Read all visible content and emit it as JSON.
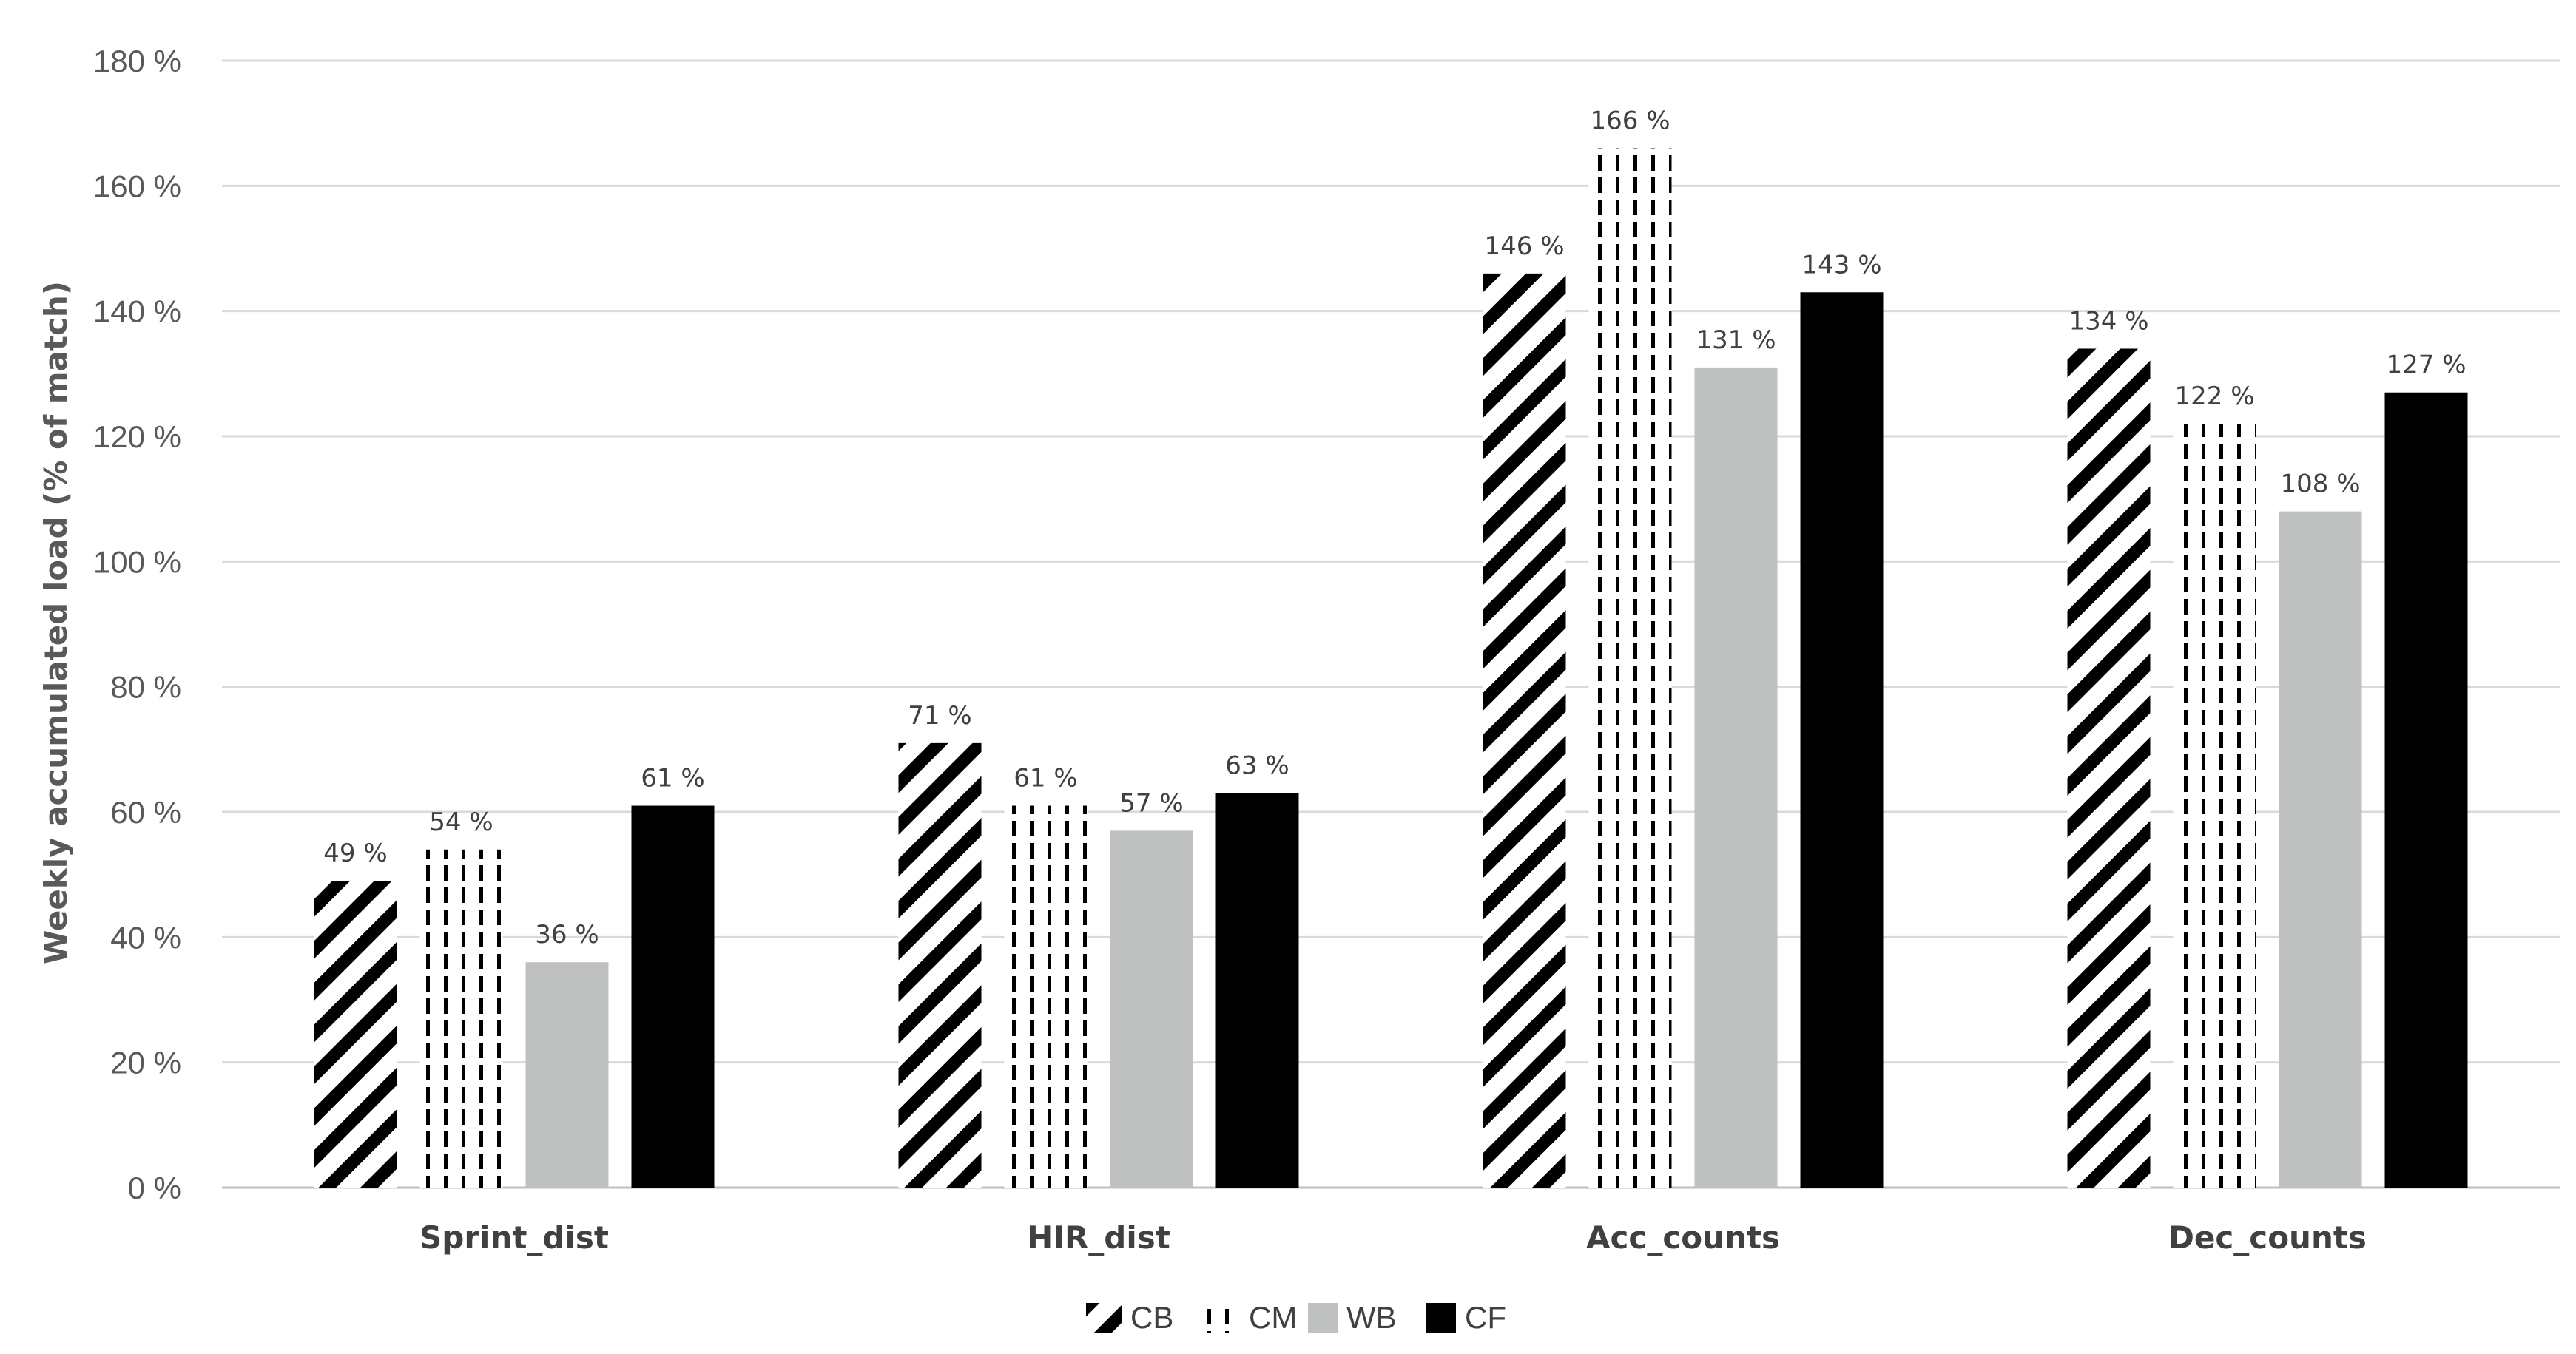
{
  "chart_data": {
    "type": "bar",
    "title": "",
    "xlabel": "",
    "ylabel": "Weekly accumulated load (% of match)",
    "ylim": [
      0,
      180
    ],
    "yticks": [
      0,
      20,
      40,
      60,
      80,
      100,
      120,
      140,
      160,
      180
    ],
    "ytick_labels": [
      "0 %",
      "20 %",
      "40 %",
      "60 %",
      "80 %",
      "100 %",
      "120 %",
      "140 %",
      "160 %",
      "180 %"
    ],
    "grid": true,
    "legend_position": "bottom",
    "categories": [
      "Sprint_dist",
      "HIR_dist",
      "Acc_counts",
      "Dec_counts"
    ],
    "series": [
      {
        "name": "CB",
        "pattern": "diagonal-stripes",
        "color": "#000000",
        "values": [
          49,
          71,
          146,
          134
        ],
        "labels": [
          "49 %",
          "71 %",
          "146 %",
          "134 %"
        ]
      },
      {
        "name": "CM",
        "pattern": "dashed-vertical",
        "color": "#000000",
        "values": [
          54,
          61,
          166,
          122
        ],
        "labels": [
          "54 %",
          "61 %",
          "166 %",
          "122 %"
        ]
      },
      {
        "name": "WB",
        "pattern": "solid",
        "color": "#bfc1c0",
        "values": [
          36,
          57,
          131,
          108
        ],
        "labels": [
          "36 %",
          "57 %",
          "131 %",
          "108 %"
        ]
      },
      {
        "name": "CF",
        "pattern": "solid",
        "color": "#000000",
        "values": [
          61,
          63,
          143,
          127
        ],
        "labels": [
          "61 %",
          "63 %",
          "143 %",
          "127 %"
        ]
      }
    ]
  }
}
